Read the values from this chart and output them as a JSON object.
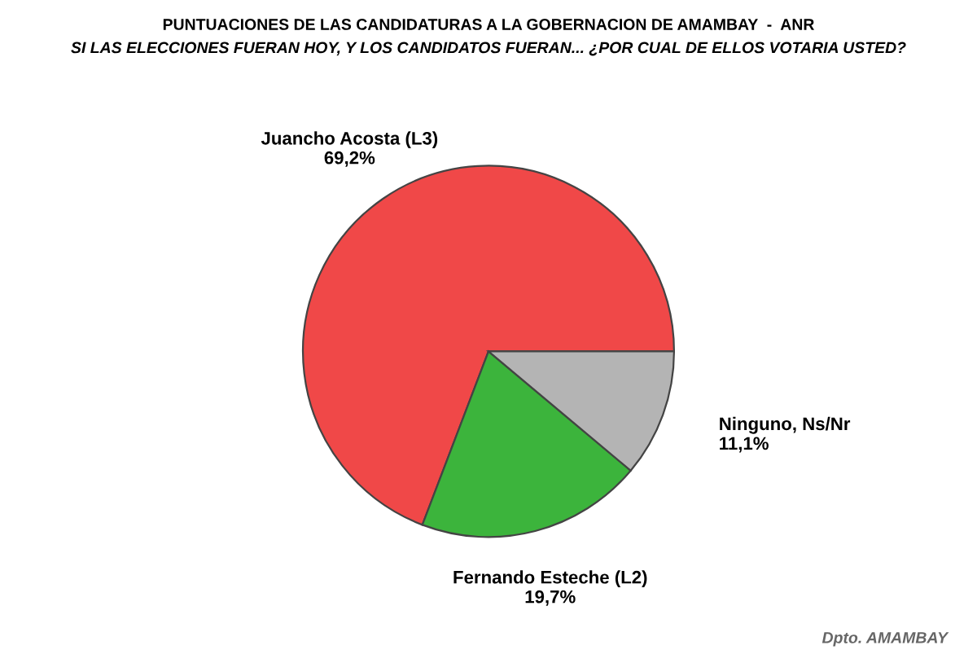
{
  "chart_data": {
    "type": "pie",
    "title": "PUNTUACIONES DE LAS CANDIDATURAS A LA GOBERNACION DE AMAMBAY  -  ANR",
    "subtitle": "SI LAS ELECCIONES FUERAN HOY, Y LOS CANDIDATOS FUERAN... ¿POR CUAL DE ELLOS VOTARIA USTED?",
    "categories": [
      "Juancho Acosta (L3)",
      "Fernando Esteche (L2)",
      "Ninguno, Ns/Nr"
    ],
    "values": [
      69.2,
      19.7,
      11.1
    ],
    "value_labels": [
      "69,2%",
      "19,7%",
      "11,1%"
    ],
    "colors": [
      "#f04848",
      "#3cb43c",
      "#b4b4b4"
    ],
    "annotations": [
      "Dpto. AMAMBAY"
    ],
    "legend": false
  }
}
